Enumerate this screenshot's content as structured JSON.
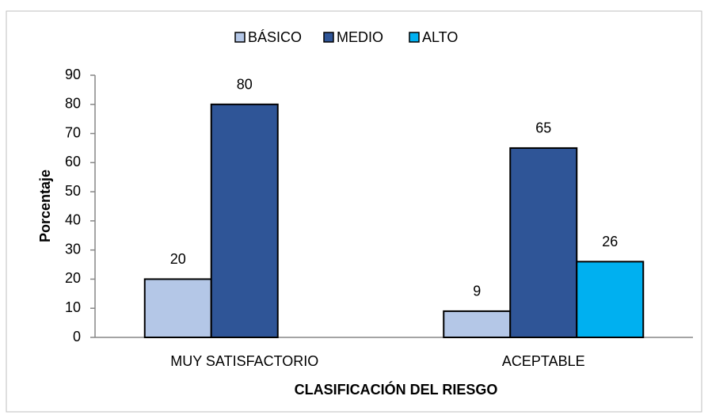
{
  "chart_data": {
    "type": "bar",
    "categories": [
      "MUY SATISFACTORIO",
      "ACEPTABLE"
    ],
    "series": [
      {
        "name": "BÁSICO",
        "color": "#b4c7e7",
        "values": [
          20,
          9
        ]
      },
      {
        "name": "MEDIO",
        "color": "#2f5597",
        "values": [
          80,
          65
        ]
      },
      {
        "name": "ALTO",
        "color": "#00b0f0",
        "values": [
          null,
          26
        ]
      }
    ],
    "xlabel": "CLASIFICACIÓN DEL RIESGO",
    "ylabel": "Porcentaje",
    "ylim": [
      0,
      90
    ],
    "yticks": [
      0,
      10,
      20,
      30,
      40,
      50,
      60,
      70,
      80,
      90
    ],
    "grid": false,
    "legend": "top"
  }
}
